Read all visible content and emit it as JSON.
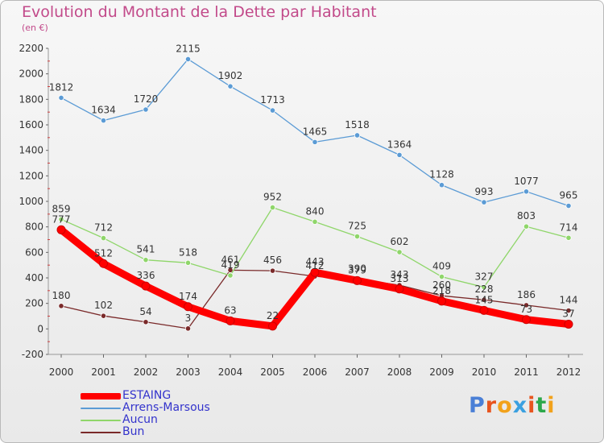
{
  "chart_data": {
    "type": "line",
    "title": "Evolution du Montant de la Dette par Habitant",
    "subtitle": "(en €)",
    "x": [
      "2000",
      "2001",
      "2002",
      "2003",
      "2004",
      "2005",
      "2006",
      "2007",
      "2008",
      "2009",
      "2010",
      "2011",
      "2012"
    ],
    "ylim": [
      -200,
      2200
    ],
    "yticks": [
      "-200",
      "0",
      "200",
      "400",
      "600",
      "800",
      "1000",
      "1200",
      "1400",
      "1600",
      "1800",
      "2000",
      "2200"
    ],
    "grid": false,
    "legend": "bottom-left",
    "series": [
      {
        "name": "ESTAING",
        "color": "#ff0000",
        "values": [
          777,
          512,
          336,
          174,
          63,
          22,
          443,
          379,
          313,
          218,
          145,
          73,
          37
        ],
        "labels": [
          "777",
          "512",
          "336",
          "174",
          "63",
          "22",
          "443",
          "379",
          "313",
          "218",
          "145",
          "73",
          "37"
        ]
      },
      {
        "name": "Arrens-Marsous",
        "color": "#5b9bd5",
        "values": [
          1812,
          1634,
          1720,
          2115,
          1902,
          1713,
          1465,
          1518,
          1364,
          1128,
          993,
          1077,
          965
        ],
        "labels": [
          "1812",
          "1634",
          "1720",
          "2115",
          "1902",
          "1713",
          "1465",
          "1518",
          "1364",
          "1128",
          "993",
          "1077",
          "965"
        ]
      },
      {
        "name": "Aucun",
        "color": "#8fd66a",
        "values": [
          859,
          712,
          541,
          518,
          419,
          952,
          840,
          725,
          602,
          409,
          327,
          803,
          714
        ],
        "labels": [
          "859",
          "712",
          "541",
          "518",
          "419",
          "952",
          "840",
          "725",
          "602",
          "409",
          "327",
          "803",
          "714"
        ]
      },
      {
        "name": "Bun",
        "color": "#7a2a2a",
        "values": [
          180,
          102,
          54,
          3,
          461,
          456,
          412,
          390,
          343,
          260,
          228,
          186,
          144
        ],
        "labels": [
          "180",
          "102",
          "54",
          "3",
          "461",
          "456",
          "412",
          "390",
          "343",
          "260",
          "228",
          "186",
          "144"
        ]
      }
    ]
  },
  "logo": {
    "text": "Proxiti",
    "letter_colors": [
      "#4a7fd6",
      "#e8541e",
      "#f2a21b",
      "#3aa0e0",
      "#e8541e",
      "#2ca84a",
      "#f2a21b"
    ]
  }
}
